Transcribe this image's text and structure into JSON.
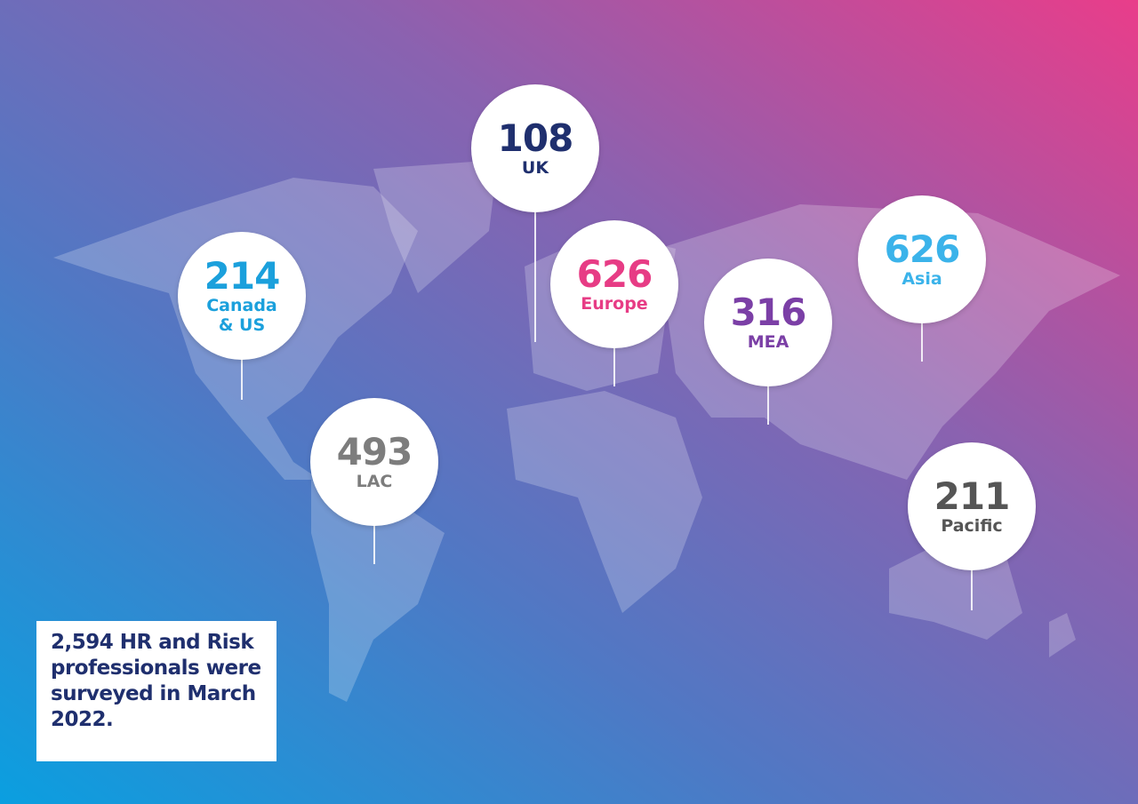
{
  "pins": [
    {
      "value": 108,
      "label": "UK",
      "color": "#1f2f6e"
    },
    {
      "value": 214,
      "label": "Canada & US",
      "color": "#1ba0dc"
    },
    {
      "value": 493,
      "label": "LAC",
      "color": "#7d7d7d"
    },
    {
      "value": 626,
      "label": "Europe",
      "color": "#e73c85"
    },
    {
      "value": 316,
      "label": "MEA",
      "color": "#7b3fa6"
    },
    {
      "value": 626,
      "label": "Asia",
      "color": "#3bb3ea"
    },
    {
      "value": 211,
      "label": "Pacific",
      "color": "#555555"
    }
  ],
  "note": "2,594 HR and Risk professionals were surveyed in March 2022."
}
